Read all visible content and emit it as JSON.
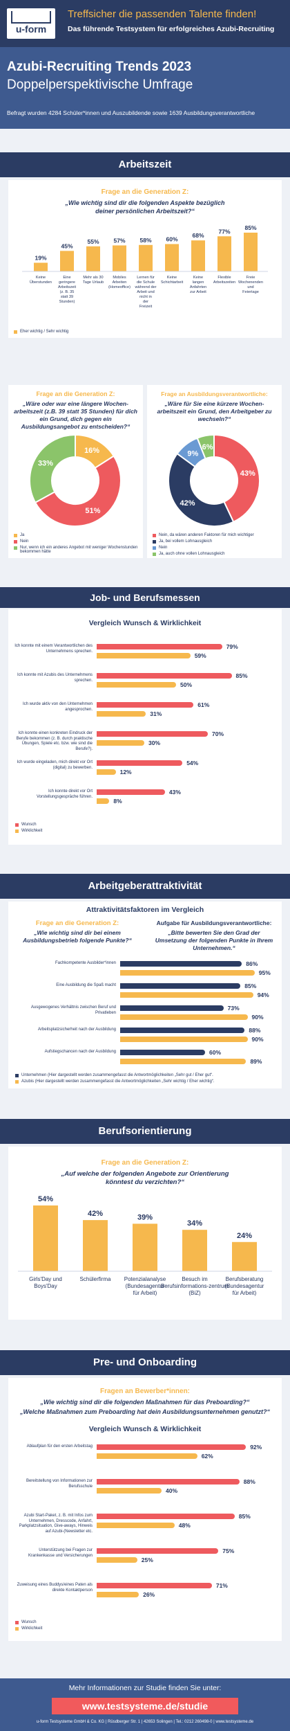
{
  "header": {
    "logo_text": "u-form",
    "tagline_1": "Treffsicher die passenden Talente finden!",
    "tagline_2": "Das führende Testsystem für erfolgreiches Azubi-Recruiting"
  },
  "hero": {
    "title": "Azubi-Recruiting Trends 2023",
    "subtitle": "Doppelperspektivische Umfrage",
    "note": "Befragt wurden 4284 Schüler*innen und Auszubildende sowie 1639 Ausbildungsverantwortliche"
  },
  "sections": {
    "arbeitszeit": "Arbeitszeit",
    "job": "Job- und Berufsmessen",
    "attr": "Arbeitgeberattraktivität",
    "beruf": "Berufsorientierung",
    "pre": "Pre- und Onboarding"
  },
  "labels": {
    "gen_z": "Frage an die Generation Z:",
    "gen_z_2": "Frage an die Generation Z:",
    "ausb": "Frage an Ausbildungsverantwortliche:",
    "ausb_2": "Aufgabe für Ausbildungsverantwortliche:",
    "gen_z_3": "Frage an die Generation Z:",
    "bewerber": "Fragen an Bewerber*innen:",
    "vergleich_1": "Vergleich Wunsch & Wirklichkeit",
    "vergleich_2": "Vergleich Wunsch & Wirklichkeit",
    "attr_title": "Attraktivitätsfaktoren im Vergleich"
  },
  "questions": {
    "q1": "„Wie wichtig sind dir die folgenden Aspekte bezüglich deiner persönlichen Arbeitszeit?“",
    "q2": "„Wäre oder war eine längere Wochen-arbeitszeit (z.B. 39 statt 35 Stunden) für dich ein Grund, dich gegen ein Ausbildungsangebot zu entscheiden?“",
    "q3": "„Wäre für Sie eine kürzere Wochen-arbeitszeit ein Grund, den Arbeitgeber zu wechseln?“",
    "q4": "„Wie wichtig sind dir bei einem Ausbildungsbetrieb folgende Punkte?“",
    "q5": "„Bitte bewerten Sie den Grad der Umsetzung der folgenden Punkte in Ihrem Unternehmen.“",
    "q6": "„Auf welche der folgenden Angebote zur Orientierung könntest du verzichten?“",
    "q7a": "„Wie wichtig sind dir die folgenden Maßnahmen für das Preboarding?“",
    "q7b": "„Welche Maßnahmen zum Preboarding hat dein Ausbildungsunternehmen genutzt?“"
  },
  "chart_data": [
    {
      "type": "bar",
      "categories": [
        "Keine Überstunden",
        "Eine geringere Arbeitszeit (z. B. 35 statt 39 Stunden)",
        "Mehr als 30 Tage Urlaub",
        "Mobiles Arbeiten (Homeoffice)",
        "Lernen für die Schule während der Arbeit und nicht in der Freizeit",
        "Keine Schichtarbeit",
        "Keine langen Anfahrten zur Arbeit",
        "Flexible Arbeitszeiten",
        "Freie Wochenenden und Feiertage"
      ],
      "values": [
        19,
        45,
        55,
        57,
        58,
        60,
        68,
        77,
        85
      ],
      "legend": "Eher wichtig / Sehr wichtig",
      "color": "#f6b84d"
    },
    {
      "type": "pie",
      "labels": [
        "Ja",
        "Nein",
        "Nur, wenn ich ein anderes Angebot mit weniger Wochenstunden bekommen hätte"
      ],
      "values": [
        16,
        51,
        33
      ],
      "colors": [
        "#f6b84d",
        "#ee5a5e",
        "#8bc46a"
      ]
    },
    {
      "type": "pie",
      "labels": [
        "Nein, da wären anderen Faktoren für mich wichtiger",
        "Ja, bei vollem Lohnausgleich",
        "Nein",
        "Ja, auch ohne vollen Lohnausgleich"
      ],
      "values": [
        43,
        42,
        9,
        6
      ],
      "colors": [
        "#ee5a5e",
        "#2b3c63",
        "#6a9ad3",
        "#8bc46a"
      ]
    },
    {
      "type": "bar",
      "orientation": "horizontal",
      "categories": [
        "Ich konnte mit einem Verantwortlichen des Unternehmens sprechen.",
        "Ich konnte mit Azubis des Unternehmens sprechen.",
        "Ich wurde aktiv von den Unternehmen angesprochen.",
        "Ich konnte einen konkreten Eindruck der Berufe bekommen (z. B. durch praktische Übungen, Spiele etc. bzw. wie sind die Berufe?).",
        "Ich wurde eingeladen, mich direkt vor Ort (digital) zu bewerben.",
        "Ich konnte direkt vor Ort Vorstellungsgespräche führen."
      ],
      "series": [
        {
          "name": "Wunsch",
          "values": [
            79,
            85,
            61,
            70,
            54,
            43
          ],
          "color": "#ee5a5e"
        },
        {
          "name": "Wirklichkeit",
          "values": [
            59,
            50,
            31,
            30,
            12,
            8
          ],
          "color": "#f6b84d"
        }
      ]
    },
    {
      "type": "bar",
      "orientation": "horizontal",
      "categories": [
        "Fachkompetente Ausbilder*innen",
        "Eine Ausbildung die Spaß macht",
        "Ausgewogenes Verhältnis zwischen Beruf und Privatleben",
        "Arbeitsplatzsicherheit nach der Ausbildung",
        "Aufstiegschancen nach der Ausbildung"
      ],
      "series": [
        {
          "name": "Unternehmen",
          "values": [
            86,
            85,
            73,
            88,
            60
          ],
          "color": "#2b3c63"
        },
        {
          "name": "Azubis",
          "values": [
            95,
            94,
            90,
            90,
            89
          ],
          "color": "#f6b84d"
        }
      ],
      "legend_notes": [
        "Unternehmen (Hier dargestellt werden zusammengefasst die Antwortmöglichkeiten „Sehr gut / Eher gut“.",
        "Azubis (Hier dargestellt werden zusammengefasst die Antwortmöglichkeiten „Sehr wichtig / Eher wichtig“."
      ]
    },
    {
      "type": "bar",
      "categories": [
        "Girls'Day und Boys'Day",
        "Schülerfirma",
        "Potenzialanalyse (Bundesagentur für Arbeit)",
        "Besuch im Berufsinformations-zentrum (BiZ)",
        "Berufsberatung (Bundesagentur für Arbeit)"
      ],
      "values": [
        54,
        42,
        39,
        34,
        24
      ],
      "color": "#f6b84d"
    },
    {
      "type": "bar",
      "orientation": "horizontal",
      "categories": [
        "Ablaufplan für den ersten Arbeitstag",
        "Bereitstellung von Informationen zur Berufsschule",
        "Azubi Start-Paket, z. B. mit Infos zum Unternehmen, Dresscode, Anfahrt, Parkplatzsituation, Give-aways, Hinweis auf Azubi-(Newsletter etc.",
        "Unterstützung bei Fragen zur Krankenkasse und Versicherungen",
        "Zuweisung eines Buddys/eines Paten als direkte Kontaktperson"
      ],
      "series": [
        {
          "name": "Wunsch",
          "values": [
            92,
            88,
            85,
            75,
            71
          ],
          "color": "#ee5a5e"
        },
        {
          "name": "Wirklichkeit",
          "values": [
            62,
            40,
            48,
            25,
            26
          ],
          "color": "#f6b84d"
        }
      ]
    }
  ],
  "footer": {
    "cta": "Mehr Informationen zur Studie finden Sie unter:",
    "url": "www.testsysteme.de/studie",
    "imprint": "u-form Testsysteme GmbH & Co. KG | Rüsdberger Str. 1 | 42653 Solingen | Tel.: 0212 260498-0 | www.testsysteme.de"
  }
}
